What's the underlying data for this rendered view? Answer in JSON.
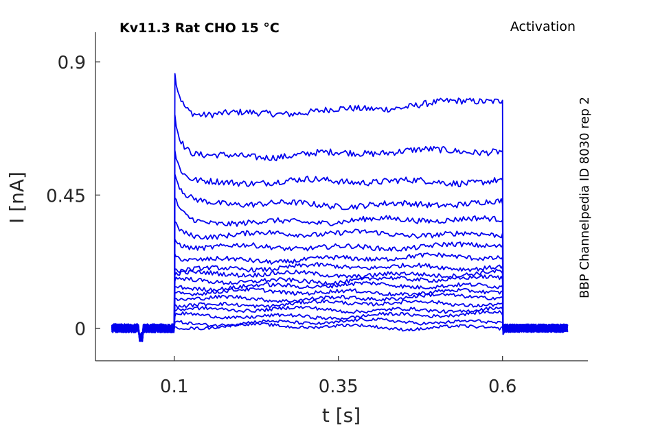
{
  "chart_data": {
    "type": "line",
    "title": "Kv11.3  Rat  CHO  15 °C",
    "protocol": "Activation",
    "source": "BBP Channelpedia ID 8030 rep 2",
    "xlabel": "t [s]",
    "ylabel": "I [nA]",
    "xlim": [
      -0.02,
      0.73
    ],
    "ylim": [
      -0.11,
      1.0
    ],
    "x_ticks": [
      0.1,
      0.35,
      0.6
    ],
    "x_tick_labels": [
      "0.1",
      "0.35",
      "0.6"
    ],
    "y_ticks": [
      0,
      0.45,
      0.9
    ],
    "y_tick_labels": [
      "0",
      "0.45",
      "0.9"
    ],
    "grid": false,
    "color": "#0000ee",
    "step_on": 0.1,
    "step_off": 0.6,
    "t_start": 0.005,
    "t_end": 0.7,
    "series": [
      {
        "peak": 0.86,
        "steady_early": 0.71,
        "steady_late": 0.77
      },
      {
        "peak": 0.72,
        "steady_early": 0.58,
        "steady_late": 0.6
      },
      {
        "peak": 0.6,
        "steady_early": 0.49,
        "steady_late": 0.5
      },
      {
        "peak": 0.52,
        "steady_early": 0.42,
        "steady_late": 0.42
      },
      {
        "peak": 0.44,
        "steady_early": 0.36,
        "steady_late": 0.365
      },
      {
        "peak": 0.36,
        "steady_early": 0.315,
        "steady_late": 0.32
      },
      {
        "peak": 0.3,
        "steady_early": 0.27,
        "steady_late": 0.28
      },
      {
        "peak": 0.25,
        "steady_early": 0.23,
        "steady_late": 0.24
      },
      {
        "peak": 0.2,
        "steady_early": 0.2,
        "steady_late": 0.21
      },
      {
        "peak": 0.18,
        "steady_early": 0.18,
        "steady_late": 0.185
      },
      {
        "peak": 0.16,
        "steady_early": 0.16,
        "steady_late": 0.165
      },
      {
        "peak": 0.14,
        "steady_early": 0.14,
        "steady_late": 0.145
      },
      {
        "peak": 0.12,
        "steady_early": 0.12,
        "steady_late": 0.125
      },
      {
        "peak": 0.1,
        "steady_early": 0.1,
        "steady_late": 0.105
      },
      {
        "peak": 0.08,
        "steady_early": 0.08,
        "steady_late": 0.085
      },
      {
        "peak": 0.06,
        "steady_early": 0.06,
        "steady_late": 0.065
      },
      {
        "peak": 0.04,
        "steady_early": 0.04,
        "steady_late": 0.045
      },
      {
        "peak": 0.02,
        "steady_early": 0.02,
        "steady_late": 0.02
      },
      {
        "peak": 0.005,
        "steady_early": 0.005,
        "steady_late": 0.005
      }
    ]
  }
}
